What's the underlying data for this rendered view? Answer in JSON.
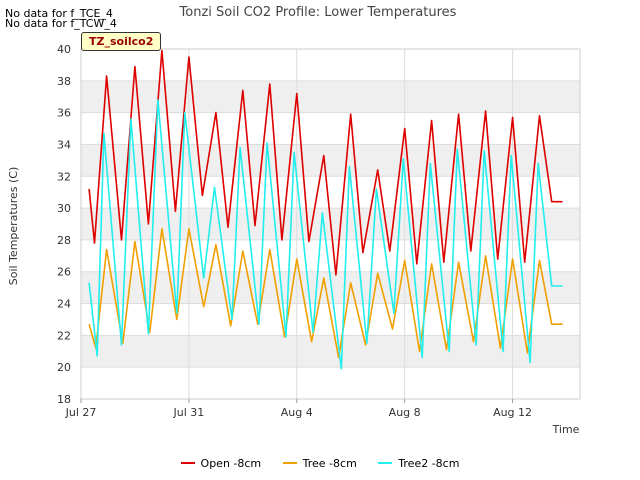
{
  "no_data_messages": [
    "No data for f_TCE_4",
    "No data for f_TCW_4"
  ],
  "site_label": "TZ_soilco2",
  "colors": {
    "open": "#dd0000",
    "tree": "#f0a000",
    "tree2": "#22eeee",
    "band": "#efefef",
    "grid": "#dddddd"
  },
  "chart_data": {
    "type": "line",
    "title": "Tonzi Soil CO2 Profile: Lower Temperatures",
    "xlabel": "Time",
    "ylabel": "Soil Temperatures (C)",
    "xlim": [
      27.0,
      45.5
    ],
    "ylim": [
      18,
      40
    ],
    "x_unit": "day of year offset from Jul 0 (Aug 1 = 32)",
    "x_ticks": [
      {
        "x": 27,
        "label": "Jul 27"
      },
      {
        "x": 31,
        "label": "Jul 31"
      },
      {
        "x": 35,
        "label": "Aug 4"
      },
      {
        "x": 39,
        "label": "Aug 8"
      },
      {
        "x": 43,
        "label": "Aug 12"
      }
    ],
    "y_ticks": [
      18,
      20,
      22,
      24,
      26,
      28,
      30,
      32,
      34,
      36,
      38,
      40
    ],
    "legend_position": "bottom",
    "series": [
      {
        "name": "Open -8cm",
        "color": "#dd0000",
        "x": [
          27.3,
          27.5,
          27.95,
          28.5,
          29.0,
          29.5,
          30.0,
          30.5,
          31.0,
          31.5,
          32.0,
          32.45,
          33.0,
          33.45,
          34.0,
          34.45,
          35.0,
          35.45,
          36.0,
          36.45,
          37.0,
          37.45,
          38.0,
          38.45,
          39.0,
          39.45,
          40.0,
          40.45,
          41.0,
          41.45,
          42.0,
          42.45,
          43.0,
          43.45,
          44.0,
          44.45,
          44.85
        ],
        "y": [
          31.2,
          27.8,
          38.3,
          28.0,
          38.9,
          29.0,
          39.9,
          29.8,
          39.5,
          30.8,
          36.0,
          28.8,
          37.4,
          28.9,
          37.8,
          28.0,
          37.2,
          27.9,
          33.3,
          25.8,
          35.9,
          27.2,
          32.4,
          27.3,
          35.0,
          26.5,
          35.5,
          26.6,
          35.9,
          27.3,
          36.1,
          26.8,
          35.7,
          26.6,
          35.8,
          30.4,
          30.4
        ]
      },
      {
        "name": "Tree -8cm",
        "color": "#f0a000",
        "x": [
          27.3,
          27.55,
          27.95,
          28.55,
          29.0,
          29.55,
          30.0,
          30.55,
          31.0,
          31.55,
          32.0,
          32.55,
          33.0,
          33.55,
          34.0,
          34.55,
          35.0,
          35.55,
          36.0,
          36.55,
          37.0,
          37.55,
          38.0,
          38.55,
          39.0,
          39.55,
          40.0,
          40.55,
          41.0,
          41.55,
          42.0,
          42.55,
          43.0,
          43.55,
          44.0,
          44.45,
          44.85
        ],
        "y": [
          22.7,
          21.2,
          27.4,
          21.5,
          27.9,
          22.2,
          28.7,
          23.0,
          28.7,
          23.8,
          27.7,
          22.6,
          27.3,
          22.7,
          27.4,
          21.9,
          26.8,
          21.6,
          25.6,
          20.6,
          25.3,
          21.4,
          25.9,
          22.4,
          26.7,
          21.0,
          26.5,
          21.1,
          26.6,
          21.6,
          27.0,
          21.2,
          26.8,
          20.9,
          26.7,
          22.7,
          22.7
        ]
      },
      {
        "name": "Tree2 -8cm",
        "color": "#22eeee",
        "x": [
          27.3,
          27.6,
          27.85,
          28.5,
          28.85,
          29.5,
          29.85,
          30.55,
          30.85,
          31.55,
          31.95,
          32.6,
          32.9,
          33.6,
          33.9,
          34.6,
          34.9,
          35.6,
          35.95,
          36.65,
          36.95,
          37.6,
          37.95,
          38.6,
          38.95,
          39.65,
          39.95,
          40.65,
          40.95,
          41.65,
          41.95,
          42.65,
          42.95,
          43.65,
          43.95,
          44.45,
          44.85
        ],
        "y": [
          25.3,
          20.7,
          34.7,
          21.4,
          35.6,
          22.1,
          36.8,
          23.4,
          36.0,
          25.6,
          31.3,
          23.0,
          33.8,
          22.7,
          34.1,
          21.9,
          33.5,
          22.2,
          29.7,
          19.9,
          32.6,
          21.5,
          31.2,
          23.4,
          33.1,
          20.6,
          32.8,
          21.0,
          33.7,
          21.4,
          33.6,
          21.0,
          33.3,
          20.3,
          32.8,
          25.1,
          25.1
        ]
      }
    ]
  }
}
